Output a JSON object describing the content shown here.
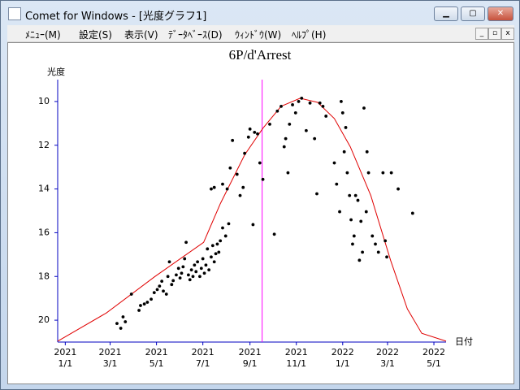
{
  "window": {
    "title": "Comet for Windows - [光度グラフ1]",
    "menu": [
      "ﾒﾆｭｰ(M)",
      "設定(S)",
      "表示(V)",
      "ﾃﾞｰﾀﾍﾞｰｽ(D)",
      "ｳｨﾝﾄﾞｳ(W)",
      "ﾍﾙﾌﾟ(H)"
    ]
  },
  "chart_data": {
    "type": "scatter",
    "title": "6P/d'Arrest",
    "y_label": "光度",
    "x_label": "日付",
    "color": "#000000",
    "axis_color": "#0000c0",
    "xlim": [
      "2020/12/22",
      "2022/5/17"
    ],
    "ylim": [
      21,
      9
    ],
    "xticks": [
      {
        "value": "2021/1/1",
        "label": [
          "2021",
          "1/1"
        ]
      },
      {
        "value": "2021/3/1",
        "label": [
          "2021",
          "3/1"
        ]
      },
      {
        "value": "2021/5/1",
        "label": [
          "2021",
          "5/1"
        ]
      },
      {
        "value": "2021/7/1",
        "label": [
          "2021",
          "7/1"
        ]
      },
      {
        "value": "2021/9/1",
        "label": [
          "2021",
          "9/1"
        ]
      },
      {
        "value": "2021/11/1",
        "label": [
          "2021",
          "11/1"
        ]
      },
      {
        "value": "2022/1/1",
        "label": [
          "2022",
          "1/1"
        ]
      },
      {
        "value": "2022/3/1",
        "label": [
          "2022",
          "3/1"
        ]
      },
      {
        "value": "2022/5/1",
        "label": [
          "2022",
          "5/1"
        ]
      }
    ],
    "yticks": [
      10,
      12,
      14,
      16,
      18,
      20
    ],
    "x": [
      "2021/3/10",
      "2021/3/15",
      "2021/3/18",
      "2021/3/21",
      "2021/3/29",
      "2021/4/8",
      "2021/4/10",
      "2021/4/15",
      "2021/4/19",
      "2021/4/24",
      "2021/4/28",
      "2021/5/2",
      "2021/5/5",
      "2021/5/8",
      "2021/5/10",
      "2021/5/14",
      "2021/5/16",
      "2021/5/18",
      "2021/5/21",
      "2021/5/23",
      "2021/5/27",
      "2021/5/30",
      "2021/6/1",
      "2021/6/3",
      "2021/6/5",
      "2021/6/7",
      "2021/6/9",
      "2021/6/12",
      "2021/6/14",
      "2021/6/16",
      "2021/6/18",
      "2021/6/20",
      "2021/6/22",
      "2021/6/24",
      "2021/6/27",
      "2021/6/29",
      "2021/7/1",
      "2021/7/3",
      "2021/7/5",
      "2021/7/7",
      "2021/7/9",
      "2021/7/12",
      "2021/7/14",
      "2021/7/16",
      "2021/7/18",
      "2021/7/20",
      "2021/7/22",
      "2021/7/24",
      "2021/7/27",
      "2021/7/31",
      "2021/8/4",
      "2021/7/12",
      "2021/7/16",
      "2021/7/27",
      "2021/8/2",
      "2021/8/6",
      "2021/8/9",
      "2021/8/15",
      "2021/8/19",
      "2021/8/23",
      "2021/8/25",
      "2021/8/30",
      "2021/9/1",
      "2021/9/5",
      "2021/9/7",
      "2021/9/11",
      "2021/9/14",
      "2021/9/18",
      "2021/9/27",
      "2021/10/3",
      "2021/10/7",
      "2021/10/12",
      "2021/10/16",
      "2021/10/18",
      "2021/10/21",
      "2021/10/23",
      "2021/10/27",
      "2021/10/31",
      "2021/11/4",
      "2021/11/8",
      "2021/11/14",
      "2021/11/19",
      "2021/11/25",
      "2021/11/28",
      "2021/12/2",
      "2021/12/6",
      "2021/12/10",
      "2021/12/21",
      "2021/12/24",
      "2021/12/28",
      "2021/12/30",
      "2022/1/1",
      "2022/1/3",
      "2022/1/5",
      "2022/1/7",
      "2022/1/10",
      "2022/1/12",
      "2022/1/14",
      "2022/1/16",
      "2022/1/18",
      "2022/1/21",
      "2022/1/23",
      "2022/1/25",
      "2022/1/27",
      "2022/1/29",
      "2022/2/1",
      "2022/2/2",
      "2022/2/4",
      "2022/2/9",
      "2022/2/13",
      "2022/2/17",
      "2022/2/23",
      "2022/2/26",
      "2022/2/28",
      "2022/3/6",
      "2022/3/15",
      "2022/4/3"
    ],
    "values": [
      20.15,
      20.37,
      19.85,
      20.07,
      18.81,
      19.55,
      19.33,
      19.26,
      19.18,
      19.04,
      18.74,
      18.6,
      18.44,
      18.22,
      18.67,
      18.81,
      18.0,
      17.33,
      18.37,
      18.19,
      17.93,
      17.63,
      18.07,
      17.85,
      17.56,
      17.19,
      16.44,
      17.93,
      18.15,
      17.7,
      18.0,
      17.48,
      17.78,
      17.33,
      18.0,
      17.63,
      17.19,
      17.85,
      17.48,
      16.74,
      17.7,
      17.11,
      16.59,
      17.33,
      16.96,
      16.52,
      16.89,
      16.37,
      15.78,
      16.15,
      15.59,
      14.0,
      13.93,
      13.78,
      14.0,
      13.04,
      11.78,
      13.33,
      14.3,
      13.93,
      12.37,
      11.63,
      11.26,
      15.63,
      11.41,
      11.48,
      12.81,
      13.56,
      11.04,
      16.07,
      10.44,
      10.22,
      12.07,
      11.7,
      13.26,
      11.04,
      10.15,
      10.52,
      10.0,
      9.85,
      11.33,
      10.07,
      11.7,
      14.22,
      10.07,
      10.22,
      10.67,
      12.81,
      13.78,
      15.04,
      10.0,
      10.52,
      12.3,
      11.19,
      13.26,
      14.3,
      15.41,
      16.52,
      16.15,
      14.3,
      14.52,
      17.26,
      15.48,
      16.89,
      10.3,
      15.04,
      12.3,
      13.26,
      16.15,
      16.52,
      16.89,
      13.26,
      16.37,
      17.11,
      13.26,
      14.0,
      15.11
    ],
    "curve": {
      "color": "#e00000",
      "x": [
        "2020/12/22",
        "2021/2/24",
        "2021/4/29",
        "2021/7/2",
        "2021/7/24",
        "2021/8/25",
        "2021/9/18",
        "2021/10/12",
        "2021/11/6",
        "2021/11/29",
        "2021/12/21",
        "2022/1/11",
        "2022/2/7",
        "2022/3/5",
        "2022/3/27",
        "2022/4/15",
        "2022/5/17"
      ],
      "values": [
        20.96,
        19.67,
        18.0,
        16.44,
        14.67,
        12.44,
        11.22,
        10.22,
        9.85,
        10.04,
        10.78,
        12.07,
        14.3,
        17.26,
        19.48,
        20.6,
        20.96
      ]
    },
    "marker_line": {
      "x": "2021/9/17",
      "color": "#ff00ff"
    }
  }
}
